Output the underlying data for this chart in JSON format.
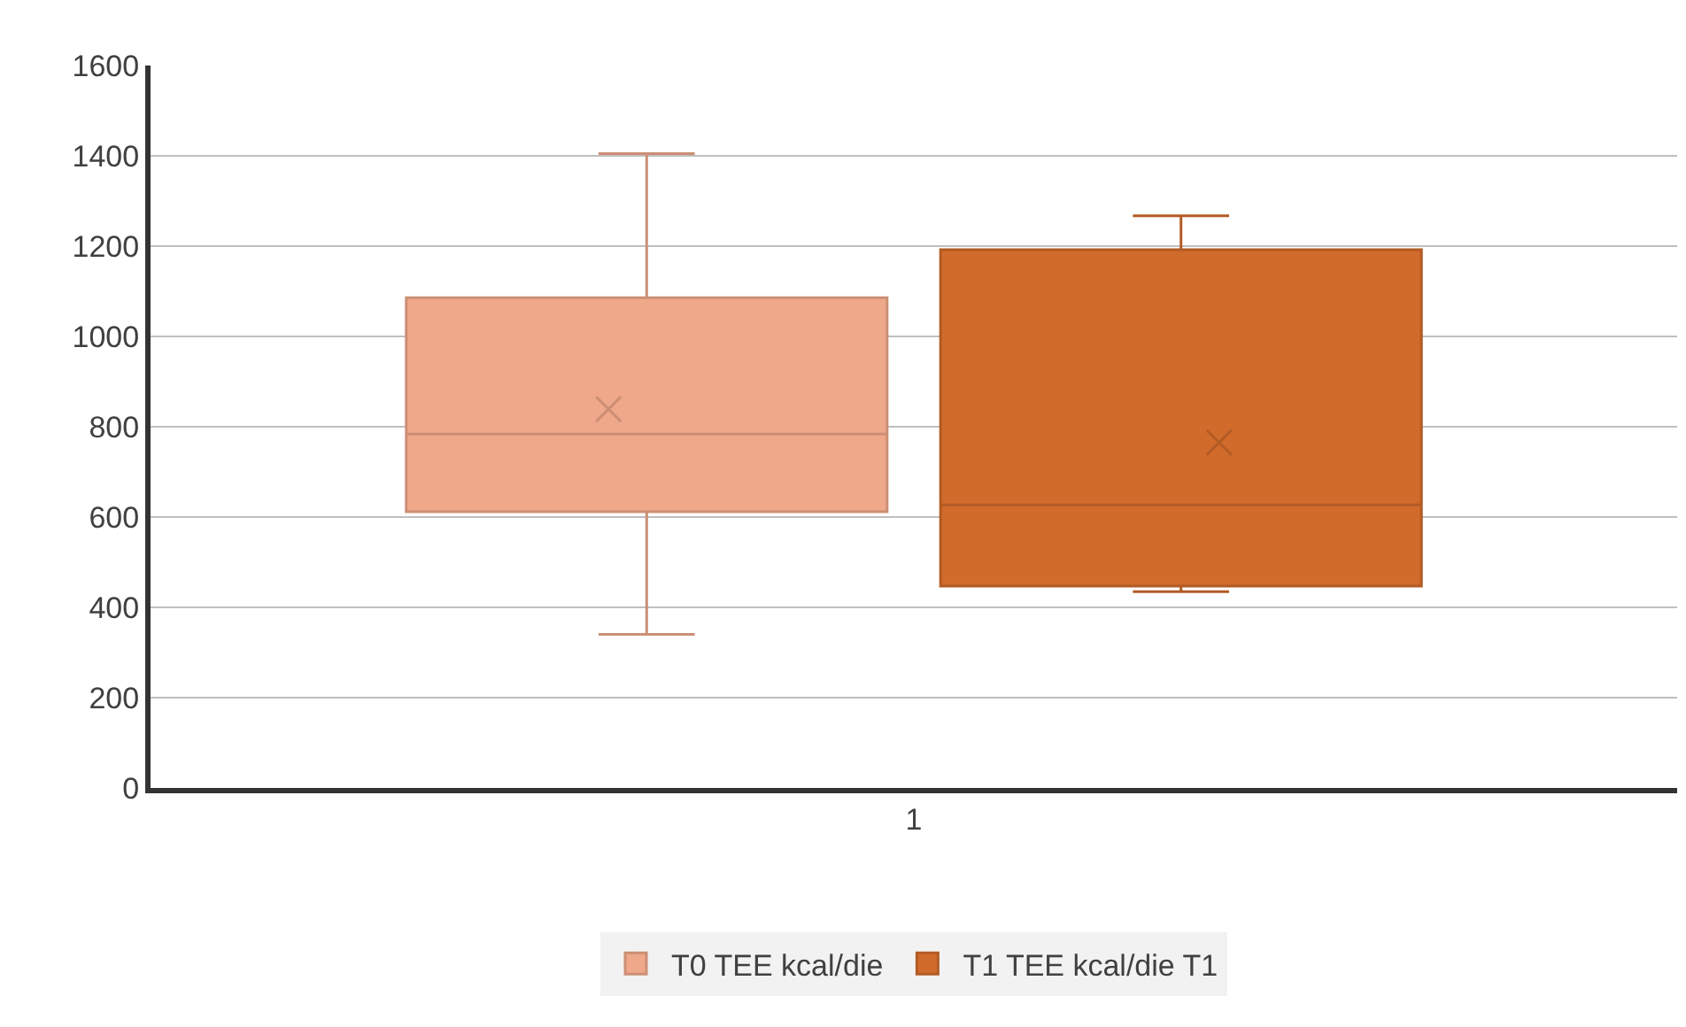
{
  "chart_data": {
    "type": "box",
    "categories": [
      "1"
    ],
    "ylim": [
      0,
      1600
    ],
    "yticks": [
      0,
      200,
      400,
      600,
      800,
      1000,
      1200,
      1400,
      1600
    ],
    "grid": "y",
    "legend": "bottom",
    "series": [
      {
        "name": "T0 TEE kcal/die",
        "color": "#f0a88a",
        "boxes": [
          {
            "low": 340,
            "q1": 612,
            "median": 784,
            "q3": 1086,
            "high": 1405,
            "mean": 839
          }
        ]
      },
      {
        "name": "T1 TEE kcal/die T1",
        "color": "#d16b2b",
        "boxes": [
          {
            "low": 435,
            "q1": 447,
            "median": 627,
            "q3": 1192,
            "high": 1267,
            "mean": 765
          }
        ]
      }
    ]
  }
}
